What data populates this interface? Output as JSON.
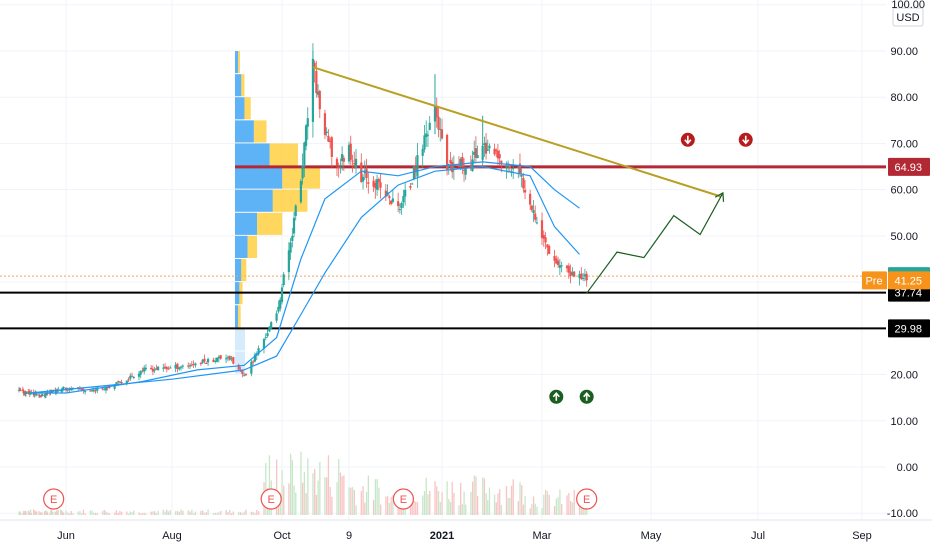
{
  "chart_data": {
    "type": "candlestick",
    "currency": "USD",
    "y_axis": {
      "ticks": [
        "100.00",
        "90.00",
        "80.00",
        "70.00",
        "60.00",
        "50.00",
        "40.00",
        "30.00",
        "20.00",
        "10.00",
        "0.00",
        "-10.00"
      ],
      "tick_values": [
        100,
        90,
        80,
        70,
        60,
        50,
        40,
        30,
        20,
        10,
        0,
        -10
      ],
      "ylim": [
        -11,
        101
      ]
    },
    "x_axis": {
      "labels": [
        {
          "text": "Jun",
          "bold": false
        },
        {
          "text": "Aug",
          "bold": false
        },
        {
          "text": "Oct",
          "bold": false
        },
        {
          "text": "9",
          "bold": false
        },
        {
          "text": "2021",
          "bold": true
        },
        {
          "text": "Mar",
          "bold": false
        },
        {
          "text": "May",
          "bold": false
        },
        {
          "text": "Jul",
          "bold": false
        },
        {
          "text": "Sep",
          "bold": false
        }
      ]
    },
    "price_tags": [
      {
        "text": "64.93",
        "value": 64.93,
        "color": "#b22833"
      },
      {
        "text": "41.29",
        "value": 41.29,
        "color": "#26a69a"
      },
      {
        "text": "37.74",
        "value": 37.74,
        "color": "#000000"
      },
      {
        "text": "29.98",
        "value": 29.98,
        "color": "#000000"
      }
    ],
    "pre_tag": {
      "label": "Pre",
      "text": "41.25",
      "value": 41.25,
      "color": "#f7931a"
    },
    "horizontal_lines": [
      {
        "value": 64.93,
        "color": "#b22833",
        "width": 3
      },
      {
        "value": 37.74,
        "color": "#000000",
        "width": 2
      },
      {
        "value": 29.98,
        "color": "#000000",
        "width": 2
      }
    ],
    "current_price_line": {
      "value": 41.29,
      "color": "#f7a35c"
    },
    "trendline": {
      "start": {
        "x": "2020-10-19",
        "y": 86.5
      },
      "end": {
        "x": "2021-06-10",
        "y": 58.5
      },
      "color": "#b8a024"
    },
    "projection_path": [
      {
        "x": "2021-03-26",
        "y": 37.6
      },
      {
        "x": "2021-04-12",
        "y": 46.5
      },
      {
        "x": "2021-04-27",
        "y": 45.3
      },
      {
        "x": "2021-05-14",
        "y": 54.4
      },
      {
        "x": "2021-05-29",
        "y": 50.3
      },
      {
        "x": "2021-06-11",
        "y": 59.3
      }
    ],
    "earnings_markers": [
      {
        "text": "E",
        "x": "2020-05-16"
      },
      {
        "text": "E",
        "x": "2020-09-25"
      },
      {
        "text": "E",
        "x": "2020-12-10"
      },
      {
        "text": "E",
        "x": "2021-03-26"
      }
    ],
    "dividend_arrows": [
      {
        "direction": "up",
        "x": "2021-03-09",
        "y": 15.2,
        "color": "#1b5e20"
      },
      {
        "direction": "up",
        "x": "2021-03-26",
        "y": 15.2,
        "color": "#1b5e20"
      },
      {
        "direction": "down",
        "x": "2021-05-22",
        "y": 70.8,
        "color": "#b71c1c"
      },
      {
        "direction": "down",
        "x": "2021-06-24",
        "y": 70.8,
        "color": "#b71c1c"
      }
    ],
    "series": [
      {
        "name": "Price",
        "points": [
          {
            "x": "2020-04-15",
            "close": 16.0
          },
          {
            "x": "2020-05-01",
            "close": 15.5
          },
          {
            "x": "2020-05-15",
            "close": 16.5
          },
          {
            "x": "2020-06-01",
            "close": 17.0
          },
          {
            "x": "2020-06-15",
            "close": 16.5
          },
          {
            "x": "2020-07-01",
            "close": 18.0
          },
          {
            "x": "2020-07-15",
            "close": 21.0
          },
          {
            "x": "2020-08-01",
            "close": 21.5
          },
          {
            "x": "2020-08-15",
            "close": 22.5
          },
          {
            "x": "2020-09-01",
            "close": 24.0
          },
          {
            "x": "2020-09-10",
            "close": 19.5
          },
          {
            "x": "2020-09-20",
            "close": 27.0
          },
          {
            "x": "2020-09-28",
            "close": 33.0
          },
          {
            "x": "2020-10-05",
            "close": 47.0
          },
          {
            "x": "2020-10-12",
            "close": 62.0
          },
          {
            "x": "2020-10-19",
            "close": 86.5
          },
          {
            "x": "2020-10-26",
            "close": 72.0
          },
          {
            "x": "2020-11-02",
            "close": 65.0
          },
          {
            "x": "2020-11-09",
            "close": 69.0
          },
          {
            "x": "2020-11-16",
            "close": 63.0
          },
          {
            "x": "2020-11-23",
            "close": 62.0
          },
          {
            "x": "2020-11-30",
            "close": 59.0
          },
          {
            "x": "2020-12-07",
            "close": 56.0
          },
          {
            "x": "2020-12-14",
            "close": 61.0
          },
          {
            "x": "2020-12-21",
            "close": 70.0
          },
          {
            "x": "2020-12-28",
            "close": 78.0
          },
          {
            "x": "2021-01-04",
            "close": 64.0
          },
          {
            "x": "2021-01-11",
            "close": 65.0
          },
          {
            "x": "2021-01-18",
            "close": 66.0
          },
          {
            "x": "2021-01-25",
            "close": 70.0
          },
          {
            "x": "2021-02-01",
            "close": 67.0
          },
          {
            "x": "2021-02-08",
            "close": 65.0
          },
          {
            "x": "2021-02-15",
            "close": 64.0
          },
          {
            "x": "2021-02-22",
            "close": 58.0
          },
          {
            "x": "2021-03-01",
            "close": 50.0
          },
          {
            "x": "2021-03-08",
            "close": 45.0
          },
          {
            "x": "2021-03-15",
            "close": 42.0
          },
          {
            "x": "2021-03-22",
            "close": 41.3
          }
        ]
      },
      {
        "name": "MA fast",
        "color": "#2196f3",
        "points": [
          {
            "x": "2020-04-15",
            "y": 16.0
          },
          {
            "x": "2020-06-01",
            "y": 16.0
          },
          {
            "x": "2020-07-15",
            "y": 18.5
          },
          {
            "x": "2020-08-15",
            "y": 21.0
          },
          {
            "x": "2020-09-10",
            "y": 22.0
          },
          {
            "x": "2020-09-28",
            "y": 28.0
          },
          {
            "x": "2020-10-12",
            "y": 45.0
          },
          {
            "x": "2020-10-26",
            "y": 58.0
          },
          {
            "x": "2020-11-16",
            "y": 64.0
          },
          {
            "x": "2020-12-07",
            "y": 63.0
          },
          {
            "x": "2020-12-28",
            "y": 65.0
          },
          {
            "x": "2021-01-25",
            "y": 66.0
          },
          {
            "x": "2021-02-22",
            "y": 65.0
          },
          {
            "x": "2021-03-08",
            "y": 60.0
          },
          {
            "x": "2021-03-22",
            "y": 56.0
          }
        ]
      },
      {
        "name": "MA slow",
        "color": "#2196f3",
        "points": [
          {
            "x": "2020-04-15",
            "y": 16.0
          },
          {
            "x": "2020-08-01",
            "y": 19.0
          },
          {
            "x": "2020-09-10",
            "y": 21.0
          },
          {
            "x": "2020-09-28",
            "y": 24.0
          },
          {
            "x": "2020-10-12",
            "y": 33.0
          },
          {
            "x": "2020-10-26",
            "y": 42.0
          },
          {
            "x": "2020-11-16",
            "y": 54.0
          },
          {
            "x": "2020-12-07",
            "y": 61.0
          },
          {
            "x": "2020-12-28",
            "y": 64.0
          },
          {
            "x": "2021-01-25",
            "y": 65.0
          },
          {
            "x": "2021-02-22",
            "y": 63.0
          },
          {
            "x": "2021-03-08",
            "y": 52.0
          },
          {
            "x": "2021-03-22",
            "y": 46.0
          }
        ]
      }
    ],
    "volume_profile": [
      {
        "price_low": 85,
        "price_high": 90,
        "up": 0.05,
        "down": 0.03
      },
      {
        "price_low": 80,
        "price_high": 85,
        "up": 0.1,
        "down": 0.05
      },
      {
        "price_low": 75,
        "price_high": 80,
        "up": 0.15,
        "down": 0.1
      },
      {
        "price_low": 70,
        "price_high": 75,
        "up": 0.3,
        "down": 0.2
      },
      {
        "price_low": 65,
        "price_high": 70,
        "up": 0.55,
        "down": 0.45
      },
      {
        "price_low": 60,
        "price_high": 65,
        "up": 0.75,
        "down": 0.6
      },
      {
        "price_low": 55,
        "price_high": 60,
        "up": 0.6,
        "down": 0.55
      },
      {
        "price_low": 50,
        "price_high": 55,
        "up": 0.35,
        "down": 0.4
      },
      {
        "price_low": 45,
        "price_high": 50,
        "up": 0.2,
        "down": 0.15
      },
      {
        "price_low": 40,
        "price_high": 45,
        "up": 0.1,
        "down": 0.08
      },
      {
        "price_low": 35,
        "price_high": 40,
        "up": 0.07,
        "down": 0.05
      },
      {
        "price_low": 30,
        "price_high": 35,
        "up": 0.05,
        "down": 0.04
      }
    ],
    "colors": {
      "up": "#26a69a",
      "down": "#ef5350",
      "volume_up": "#c8e6c9",
      "volume_down": "#f8c4c4",
      "profile_blue": "#42a5f5",
      "profile_yellow": "#ffca28",
      "grid": "#f0f3fa",
      "projection": "#1b5e20"
    }
  }
}
